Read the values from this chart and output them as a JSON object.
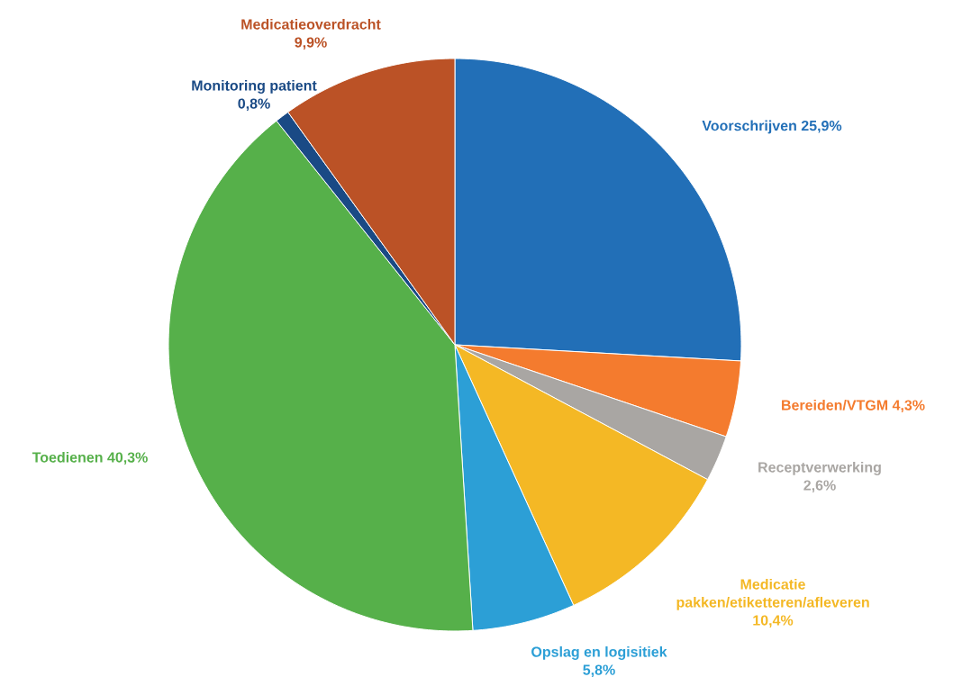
{
  "chart_data": {
    "type": "pie",
    "categories": [
      "Voorschrijven",
      "Bereiden/VTGM",
      "Receptverwerking",
      "Medicatie pakken/etiketteren/afleveren",
      "Opslag en logisitiek",
      "Toedienen",
      "Monitoring patient",
      "Medicatieoverdracht"
    ],
    "values": [
      25.9,
      4.3,
      2.6,
      10.4,
      5.8,
      40.3,
      0.8,
      9.9
    ],
    "value_labels": [
      "25,9%",
      "4,3%",
      "2,6%",
      "10,4%",
      "5,8%",
      "40,3%",
      "0,8%",
      "9,9%"
    ],
    "colors": [
      "#226fb7",
      "#f47b2e",
      "#a9a6a3",
      "#f4b825",
      "#2c9fd6",
      "#56b04a",
      "#1a4a85",
      "#bb5226"
    ]
  }
}
